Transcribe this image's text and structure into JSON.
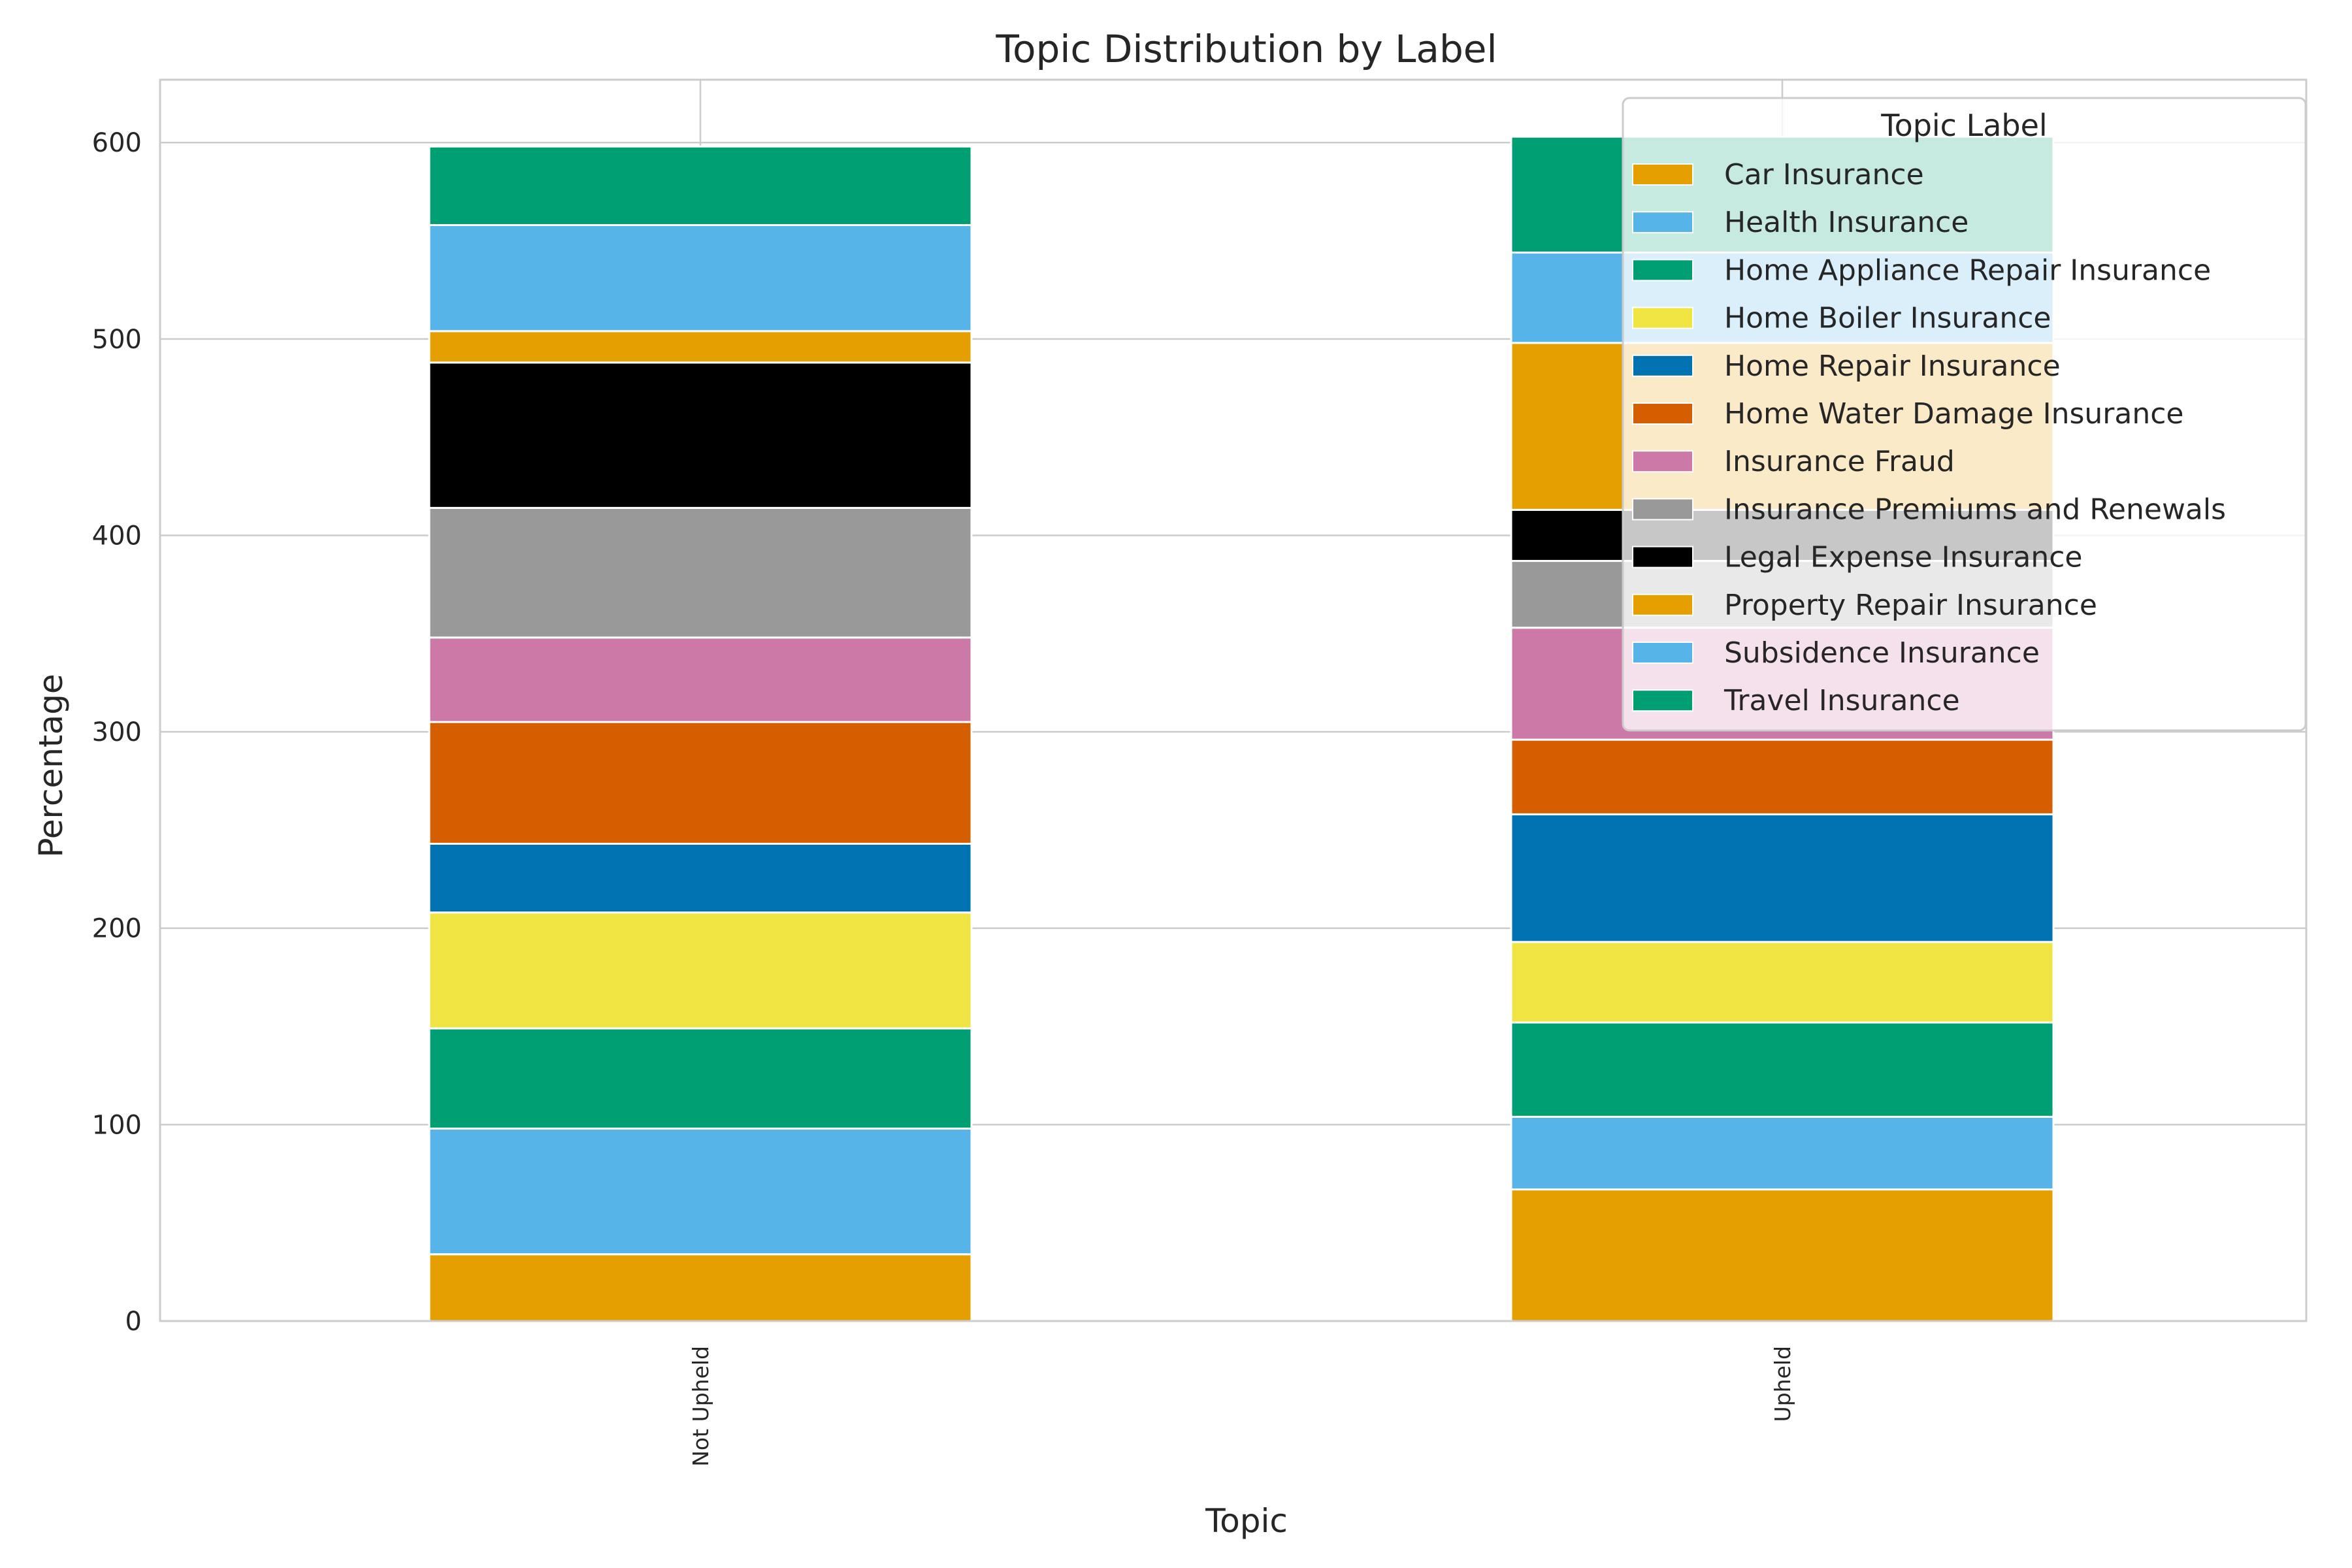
{
  "chart_data": {
    "type": "bar",
    "stacked": true,
    "title": "Topic Distribution by Label",
    "xlabel": "Topic",
    "ylabel": "Percentage",
    "categories": [
      "Not Upheld",
      "Upheld"
    ],
    "ylim": [
      0,
      632
    ],
    "yticks": [
      0,
      100,
      200,
      300,
      400,
      500,
      600
    ],
    "grid": true,
    "legend": {
      "title": "Topic Label",
      "placement": "top-right"
    },
    "series": [
      {
        "name": "Car Insurance",
        "color": "#E69F00",
        "values": [
          34,
          67
        ]
      },
      {
        "name": "Health Insurance",
        "color": "#56B4E9",
        "values": [
          64,
          37
        ]
      },
      {
        "name": "Home Appliance Repair Insurance",
        "color": "#009E73",
        "values": [
          51,
          48
        ]
      },
      {
        "name": "Home Boiler Insurance",
        "color": "#F0E442",
        "values": [
          59,
          41
        ]
      },
      {
        "name": "Home Repair Insurance",
        "color": "#0072B2",
        "values": [
          35,
          65
        ]
      },
      {
        "name": "Home Water Damage Insurance",
        "color": "#D55E00",
        "values": [
          62,
          38
        ]
      },
      {
        "name": "Insurance Fraud",
        "color": "#CC79A7",
        "values": [
          43,
          57
        ]
      },
      {
        "name": "Insurance Premiums and Renewals",
        "color": "#999999",
        "values": [
          66,
          34
        ]
      },
      {
        "name": "Legal Expense Insurance",
        "color": "#000000",
        "values": [
          74,
          26
        ]
      },
      {
        "name": "Property Repair Insurance",
        "color": "#E69F00",
        "values": [
          16,
          85
        ]
      },
      {
        "name": "Subsidence Insurance",
        "color": "#56B4E9",
        "values": [
          54,
          46
        ]
      },
      {
        "name": "Travel Insurance",
        "color": "#009E73",
        "values": [
          40,
          59
        ]
      }
    ]
  }
}
